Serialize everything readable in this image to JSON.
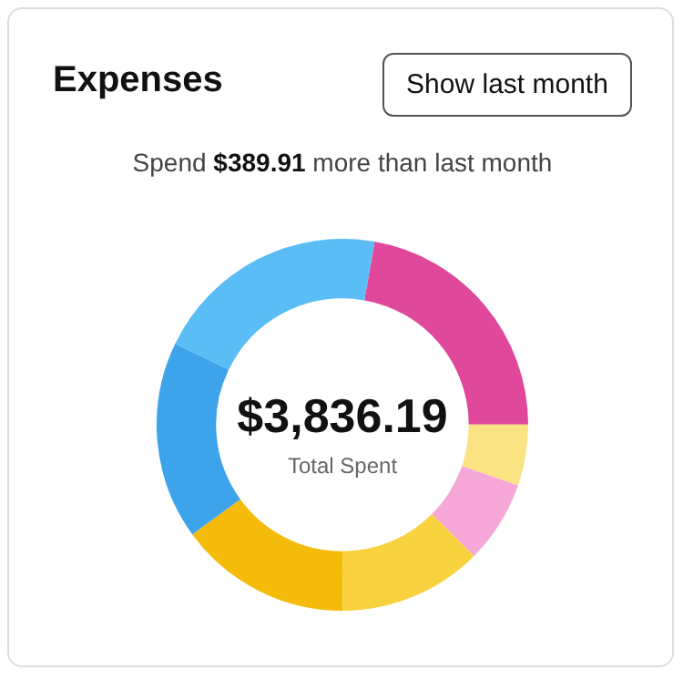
{
  "chart_data": {
    "type": "donut",
    "title": "Expenses",
    "subtitle": "Spend $389.91 more than last month",
    "categories": [
      null,
      null,
      null,
      null,
      null,
      null,
      null
    ],
    "values": [
      22.2,
      5.3,
      7.2,
      12.5,
      15,
      17.2,
      20.6
    ],
    "colors": [
      "#e0489b",
      "#fbe384",
      "#f5a8d8",
      "#f9d33f",
      "#f5bb0a",
      "#3da3eb",
      "#5bbdf5"
    ],
    "annotations": [
      "$3,836.19",
      "Total Spent",
      "Show last month"
    ]
  }
}
